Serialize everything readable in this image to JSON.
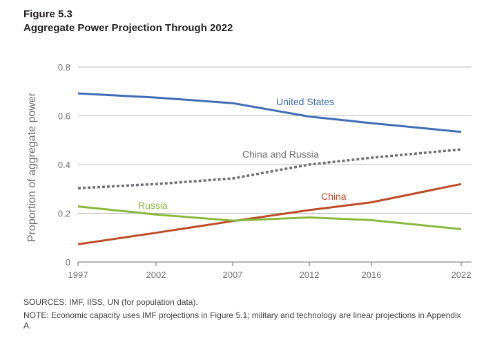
{
  "figure": {
    "label": "Figure 5.3",
    "title": "Aggregate Power Projection Through 2022"
  },
  "chart_data": {
    "type": "line",
    "ylabel": "Proportion of aggregate power",
    "xlabel": "",
    "x": [
      "1997",
      "2002",
      "2007",
      "2012",
      "2016",
      "2022"
    ],
    "ylim": [
      0,
      0.8
    ],
    "yticks": [
      "0",
      "0.2",
      "0.4",
      "0.6",
      "0.8"
    ],
    "grid": true,
    "series": [
      {
        "name": "United States",
        "values": [
          0.692,
          0.675,
          0.652,
          0.597,
          0.57,
          0.534
        ],
        "color": "#3e6db5",
        "style": "solid"
      },
      {
        "name": "China and Russia",
        "values": [
          0.303,
          0.32,
          0.343,
          0.4,
          0.428,
          0.462
        ],
        "color": "#6d6e71",
        "style": "dotted"
      },
      {
        "name": "China",
        "values": [
          0.073,
          0.12,
          0.168,
          0.213,
          0.245,
          0.32
        ],
        "color": "#be4b25",
        "style": "solid"
      },
      {
        "name": "Russia",
        "values": [
          0.228,
          0.195,
          0.17,
          0.183,
          0.172,
          0.135
        ],
        "color": "#8ab83f",
        "style": "solid"
      }
    ]
  },
  "notes": {
    "sources": "SOURCES: IMF, IISS, UN (for population data).",
    "note": "NOTE: Economic capacity uses IMF projections in Figure 5.1; military and technology are linear projections in Appendix A."
  }
}
